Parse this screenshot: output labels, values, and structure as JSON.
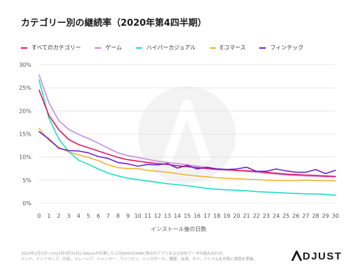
{
  "title": "カテゴリー別の継続率（2020年第4四半期）",
  "footnote_line1": "2020年1月1日～2021年3月31日にAdjustが計測した上位9050のAPAC地点のアプリおよび合計データの組み合わせ。",
  "footnote_line2": "インド、インドネシア、日本、マレーシア、ミャンマー、フィリピン、シンガポール、韓国、台湾、タイ、ベトナムを対象に調査を実施。",
  "logo_text": "DJUST",
  "colors": {
    "all": "#e0165e",
    "game": "#c48ce0",
    "hyper": "#1ddcc8",
    "ecommerce": "#f2b233",
    "fintech": "#6a21d2",
    "grid": "#e4e4e4",
    "axis_text": "#555555"
  },
  "chart_data": {
    "type": "line",
    "title": "カテゴリー別の継続率（2020年第4四半期）",
    "xlabel": "インストール後の日数",
    "ylabel": "",
    "x": [
      0,
      1,
      2,
      3,
      4,
      5,
      6,
      7,
      8,
      9,
      10,
      11,
      12,
      13,
      14,
      15,
      16,
      17,
      18,
      19,
      20,
      21,
      22,
      23,
      24,
      25,
      26,
      27,
      28,
      29,
      30
    ],
    "xlim": [
      0,
      30
    ],
    "ylim": [
      0,
      30
    ],
    "y_ticks": [
      0,
      5,
      10,
      15,
      20,
      25,
      30
    ],
    "y_tick_labels": [
      "0%",
      "5%",
      "10%",
      "15%",
      "20%",
      "25%",
      "30%"
    ],
    "x_tick_labels": [
      "0",
      "1",
      "2",
      "3",
      "4",
      "5",
      "6",
      "7",
      "8",
      "9",
      "10",
      "11",
      "12",
      "13",
      "14",
      "15",
      "16",
      "17",
      "18",
      "19",
      "20",
      "21",
      "22",
      "23",
      "24",
      "25",
      "26",
      "27",
      "28",
      "29",
      "30"
    ],
    "grid": true,
    "legend_position": "top",
    "series": [
      {
        "name": "すべてのカテゴリー",
        "color_key": "all",
        "values": [
          24.5,
          19.0,
          15.9,
          13.8,
          12.7,
          12.0,
          11.3,
          10.6,
          9.9,
          9.4,
          9.1,
          8.8,
          8.6,
          8.4,
          8.1,
          7.9,
          7.7,
          7.5,
          7.3,
          7.2,
          7.1,
          7.0,
          6.9,
          6.7,
          6.5,
          6.3,
          6.2,
          6.1,
          6.0,
          5.9,
          5.8
        ]
      },
      {
        "name": "ゲーム",
        "color_key": "game",
        "values": [
          27.8,
          21.7,
          17.9,
          16.0,
          14.9,
          14.0,
          13.0,
          11.9,
          10.9,
          10.3,
          9.9,
          9.5,
          9.1,
          8.8,
          8.6,
          8.3,
          8.0,
          7.7,
          7.5,
          7.3,
          7.1,
          6.9,
          6.7,
          6.5,
          6.3,
          6.1,
          6.0,
          5.9,
          5.8,
          5.7,
          5.7
        ]
      },
      {
        "name": "ハイパーカジュアル",
        "color_key": "hyper",
        "values": [
          26.7,
          18.4,
          13.9,
          11.2,
          9.3,
          8.4,
          7.4,
          6.5,
          5.9,
          5.4,
          5.1,
          4.8,
          4.5,
          4.2,
          4.0,
          3.8,
          3.5,
          3.2,
          3.0,
          2.9,
          2.8,
          2.7,
          2.5,
          2.4,
          2.3,
          2.2,
          2.1,
          2.0,
          2.0,
          1.9,
          1.7
        ]
      },
      {
        "name": "Eコマース",
        "color_key": "ecommerce",
        "values": [
          16.2,
          13.6,
          12.1,
          11.1,
          10.5,
          9.9,
          9.2,
          8.3,
          7.7,
          7.5,
          7.5,
          7.1,
          6.9,
          6.7,
          6.4,
          6.1,
          5.9,
          5.7,
          5.5,
          5.4,
          5.3,
          5.2,
          5.1,
          5.0,
          4.9,
          4.9,
          4.9,
          5.0,
          4.9,
          4.9,
          4.8
        ]
      },
      {
        "name": "フィンテック",
        "color_key": "fintech",
        "values": [
          15.5,
          13.9,
          11.9,
          11.4,
          11.3,
          10.9,
          10.1,
          9.7,
          8.8,
          8.5,
          8.0,
          8.4,
          8.3,
          8.6,
          7.6,
          8.2,
          7.4,
          7.8,
          7.4,
          7.3,
          7.4,
          7.8,
          6.9,
          6.9,
          7.4,
          7.0,
          6.7,
          6.7,
          7.3,
          6.4,
          7.1
        ]
      }
    ]
  }
}
